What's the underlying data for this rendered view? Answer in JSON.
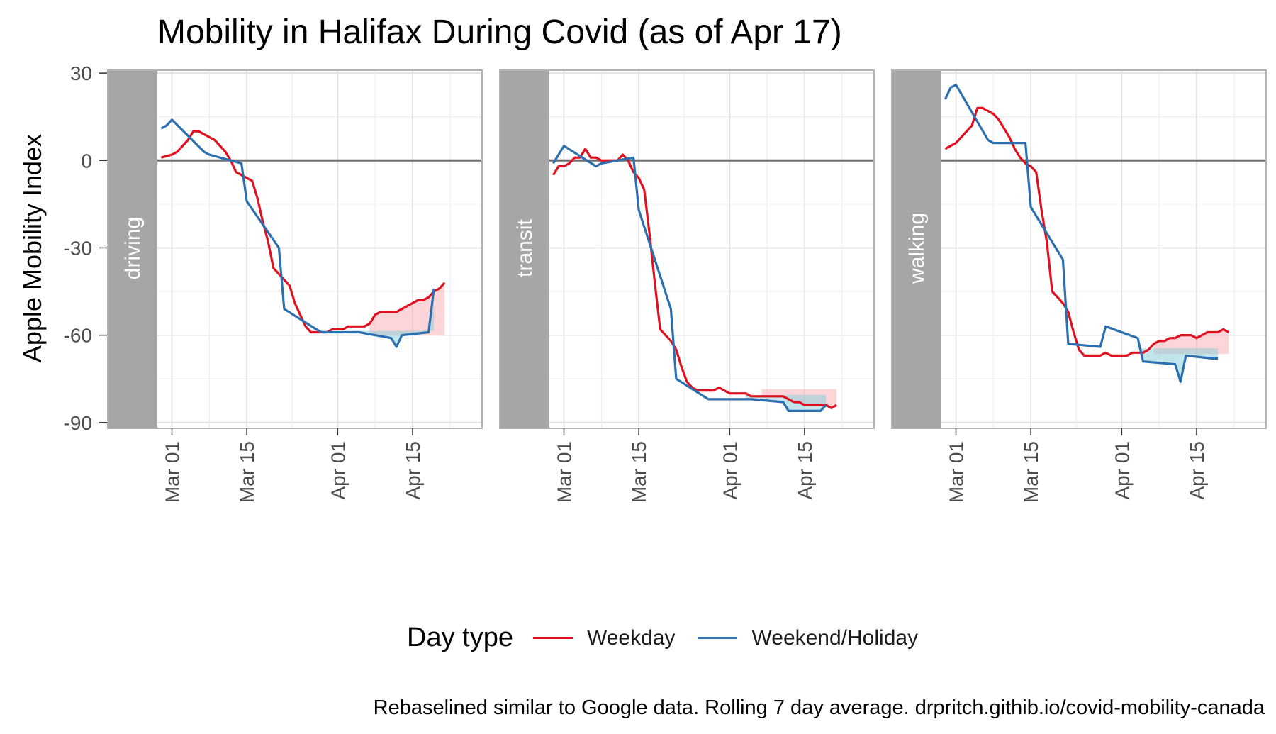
{
  "title": "Mobility in Halifax During Covid (as of Apr 17)",
  "ylabel": "Apple Mobility Index",
  "legend": {
    "title": "Day type",
    "items": [
      {
        "label": "Weekday",
        "color": "#e0101f"
      },
      {
        "label": "Weekend/Holiday",
        "color": "#2c6fb0"
      }
    ]
  },
  "caption": "Rebaselined similar to Google data. Rolling 7 day average. drpritch.githib.io/covid-mobility-canada",
  "chart_data": {
    "type": "line",
    "facets": [
      "driving",
      "transit",
      "walking"
    ],
    "x_ticks": [
      "Mar 01",
      "Mar 15",
      "Apr 01",
      "Apr 15"
    ],
    "x_tick_days": [
      0,
      14,
      31,
      45
    ],
    "xlim_days": [
      -12,
      58
    ],
    "y_ticks": [
      30,
      0,
      -30,
      -60,
      -90
    ],
    "ylim": [
      -92,
      31
    ],
    "hline": 0,
    "x_unit_note": "days relative to Mar 01",
    "panels": [
      {
        "facet": "driving",
        "weekday_mean": -60,
        "weekend_mean": -58.5,
        "series": [
          {
            "name": "Weekday",
            "color": "#e0101f",
            "points": [
              [
                -2,
                1
              ],
              [
                0,
                2
              ],
              [
                1,
                3
              ],
              [
                2,
                5
              ],
              [
                3,
                7
              ],
              [
                4,
                10
              ],
              [
                5,
                10
              ],
              [
                6,
                9
              ],
              [
                7,
                8
              ],
              [
                8,
                7
              ],
              [
                9,
                5
              ],
              [
                10,
                3
              ],
              [
                11,
                0
              ],
              [
                12,
                -4
              ],
              [
                13,
                -5
              ],
              [
                14,
                -6
              ],
              [
                15,
                -7
              ],
              [
                16,
                -13
              ],
              [
                17,
                -21
              ],
              [
                18,
                -28
              ],
              [
                19,
                -37
              ],
              [
                20,
                -39
              ],
              [
                21,
                -41
              ],
              [
                22,
                -43
              ],
              [
                23,
                -49
              ],
              [
                24,
                -53
              ],
              [
                25,
                -57
              ],
              [
                26,
                -59
              ],
              [
                27,
                -59
              ],
              [
                28,
                -59
              ],
              [
                29,
                -59
              ],
              [
                30,
                -58
              ],
              [
                31,
                -58
              ],
              [
                32,
                -58
              ],
              [
                33,
                -57
              ],
              [
                34,
                -57
              ],
              [
                35,
                -57
              ],
              [
                36,
                -57
              ],
              [
                37,
                -56
              ],
              [
                38,
                -53
              ],
              [
                39,
                -52
              ],
              [
                40,
                -52
              ],
              [
                41,
                -52
              ],
              [
                42,
                -52
              ],
              [
                43,
                -51
              ],
              [
                44,
                -50
              ],
              [
                45,
                -49
              ],
              [
                46,
                -48
              ],
              [
                47,
                -48
              ],
              [
                48,
                -47
              ],
              [
                49,
                -45
              ],
              [
                50,
                -44
              ],
              [
                51,
                -42
              ]
            ]
          },
          {
            "name": "Weekend/Holiday",
            "color": "#2c6fb0",
            "points": [
              [
                -2,
                11
              ],
              [
                -1,
                12
              ],
              [
                0,
                14
              ],
              [
                6,
                3
              ],
              [
                7,
                2
              ],
              [
                13,
                -1
              ],
              [
                14,
                -14
              ],
              [
                20,
                -30
              ],
              [
                21,
                -51
              ],
              [
                27,
                -58
              ],
              [
                28,
                -59
              ],
              [
                34,
                -59
              ],
              [
                35,
                -59
              ],
              [
                41,
                -61
              ],
              [
                42,
                -64
              ],
              [
                43,
                -60
              ],
              [
                48,
                -59
              ],
              [
                49,
                -44
              ]
            ]
          }
        ]
      },
      {
        "facet": "transit",
        "weekday_mean": -78.5,
        "weekend_mean": -80.5,
        "series": [
          {
            "name": "Weekday",
            "color": "#e0101f",
            "points": [
              [
                -2,
                -5
              ],
              [
                -1,
                -2
              ],
              [
                0,
                -2
              ],
              [
                1,
                -1
              ],
              [
                2,
                1
              ],
              [
                3,
                1
              ],
              [
                4,
                4
              ],
              [
                5,
                1
              ],
              [
                6,
                1
              ],
              [
                7,
                0
              ],
              [
                8,
                0
              ],
              [
                9,
                0
              ],
              [
                10,
                0
              ],
              [
                11,
                2
              ],
              [
                12,
                0
              ],
              [
                13,
                -4
              ],
              [
                14,
                -6
              ],
              [
                15,
                -10
              ],
              [
                16,
                -25
              ],
              [
                17,
                -42
              ],
              [
                18,
                -58
              ],
              [
                19,
                -60
              ],
              [
                20,
                -62
              ],
              [
                21,
                -65
              ],
              [
                22,
                -71
              ],
              [
                23,
                -76
              ],
              [
                24,
                -78
              ],
              [
                25,
                -79
              ],
              [
                26,
                -79
              ],
              [
                27,
                -79
              ],
              [
                28,
                -79
              ],
              [
                29,
                -78
              ],
              [
                30,
                -79
              ],
              [
                31,
                -80
              ],
              [
                32,
                -80
              ],
              [
                33,
                -80
              ],
              [
                34,
                -80
              ],
              [
                35,
                -81
              ],
              [
                36,
                -81
              ],
              [
                37,
                -81
              ],
              [
                38,
                -81
              ],
              [
                39,
                -81
              ],
              [
                40,
                -81
              ],
              [
                41,
                -81
              ],
              [
                42,
                -82
              ],
              [
                43,
                -83
              ],
              [
                44,
                -83
              ],
              [
                45,
                -84
              ],
              [
                46,
                -84
              ],
              [
                47,
                -84
              ],
              [
                48,
                -84
              ],
              [
                49,
                -84
              ],
              [
                50,
                -85
              ],
              [
                51,
                -84
              ]
            ]
          },
          {
            "name": "Weekend/Holiday",
            "color": "#2c6fb0",
            "points": [
              [
                -2,
                -1
              ],
              [
                0,
                5
              ],
              [
                6,
                -2
              ],
              [
                7,
                -1
              ],
              [
                13,
                1
              ],
              [
                14,
                -17
              ],
              [
                20,
                -51
              ],
              [
                21,
                -75
              ],
              [
                27,
                -82
              ],
              [
                28,
                -82
              ],
              [
                34,
                -82
              ],
              [
                35,
                -82
              ],
              [
                41,
                -83
              ],
              [
                42,
                -86
              ],
              [
                43,
                -86
              ],
              [
                48,
                -86
              ],
              [
                49,
                -84
              ]
            ]
          }
        ]
      },
      {
        "facet": "walking",
        "weekday_mean": -66.5,
        "weekend_mean": -64.5,
        "series": [
          {
            "name": "Weekday",
            "color": "#e0101f",
            "points": [
              [
                -2,
                4
              ],
              [
                -1,
                5
              ],
              [
                0,
                6
              ],
              [
                1,
                8
              ],
              [
                2,
                10
              ],
              [
                3,
                12
              ],
              [
                4,
                18
              ],
              [
                5,
                18
              ],
              [
                6,
                17
              ],
              [
                7,
                16
              ],
              [
                8,
                14
              ],
              [
                9,
                11
              ],
              [
                10,
                8
              ],
              [
                11,
                4
              ],
              [
                12,
                1
              ],
              [
                13,
                -1
              ],
              [
                14,
                -2
              ],
              [
                15,
                -4
              ],
              [
                16,
                -17
              ],
              [
                17,
                -28
              ],
              [
                18,
                -45
              ],
              [
                19,
                -47
              ],
              [
                20,
                -49
              ],
              [
                21,
                -52
              ],
              [
                22,
                -59
              ],
              [
                23,
                -65
              ],
              [
                24,
                -67
              ],
              [
                25,
                -67
              ],
              [
                26,
                -67
              ],
              [
                27,
                -67
              ],
              [
                28,
                -66
              ],
              [
                29,
                -67
              ],
              [
                30,
                -67
              ],
              [
                31,
                -67
              ],
              [
                32,
                -67
              ],
              [
                33,
                -66
              ],
              [
                34,
                -66
              ],
              [
                35,
                -66
              ],
              [
                36,
                -65
              ],
              [
                37,
                -63
              ],
              [
                38,
                -62
              ],
              [
                39,
                -62
              ],
              [
                40,
                -61
              ],
              [
                41,
                -61
              ],
              [
                42,
                -60
              ],
              [
                43,
                -60
              ],
              [
                44,
                -60
              ],
              [
                45,
                -61
              ],
              [
                46,
                -60
              ],
              [
                47,
                -59
              ],
              [
                48,
                -59
              ],
              [
                49,
                -59
              ],
              [
                50,
                -58
              ],
              [
                51,
                -59
              ]
            ]
          },
          {
            "name": "Weekend/Holiday",
            "color": "#2c6fb0",
            "points": [
              [
                -2,
                21
              ],
              [
                -1,
                25
              ],
              [
                0,
                26
              ],
              [
                6,
                7
              ],
              [
                7,
                6
              ],
              [
                13,
                6
              ],
              [
                14,
                -16
              ],
              [
                20,
                -34
              ],
              [
                21,
                -63
              ],
              [
                27,
                -64
              ],
              [
                28,
                -57
              ],
              [
                34,
                -61
              ],
              [
                35,
                -69
              ],
              [
                41,
                -70
              ],
              [
                42,
                -76
              ],
              [
                43,
                -67
              ],
              [
                48,
                -68
              ],
              [
                49,
                -68
              ]
            ]
          }
        ]
      }
    ]
  }
}
